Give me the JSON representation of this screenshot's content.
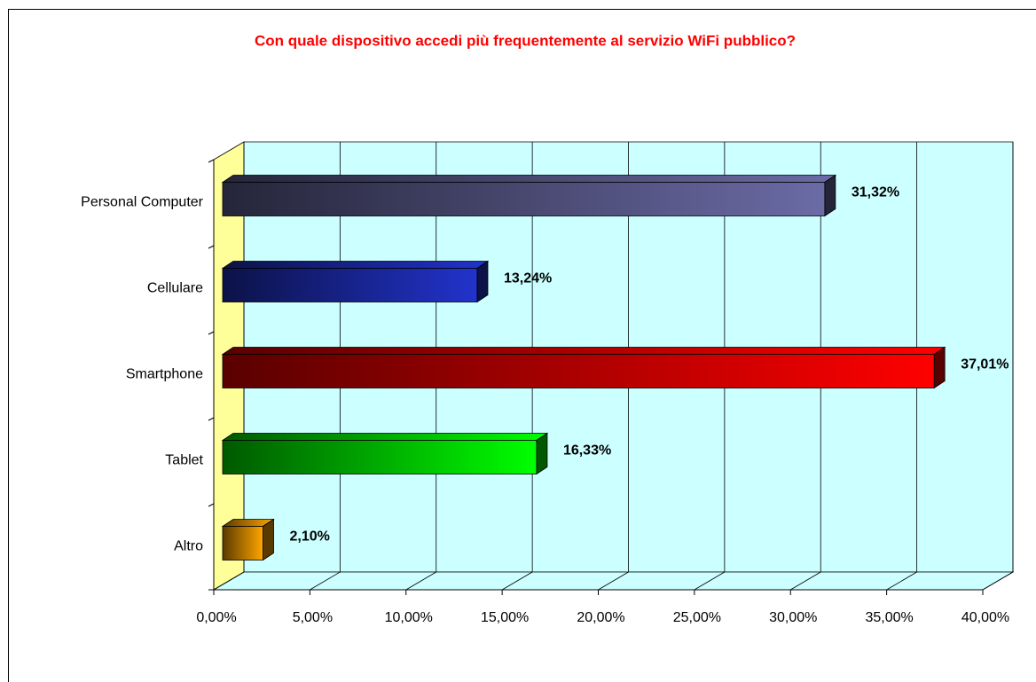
{
  "chart_data": {
    "type": "bar3d-horizontal",
    "title": "Con quale dispositivo accedi più frequentemente al servizio WiFi pubblico?",
    "categories": [
      "Personal Computer",
      "Cellulare",
      "Smartphone",
      "Tablet",
      "Altro"
    ],
    "values": [
      31.32,
      13.24,
      37.01,
      16.33,
      2.1
    ],
    "value_labels": [
      "31,32%",
      "13,24%",
      "37,01%",
      "16,33%",
      "2,10%"
    ],
    "colors": [
      "#6b6ba6",
      "#2233cc",
      "#ff0000",
      "#00ff00",
      "#ffa500"
    ],
    "xlim": [
      0,
      40
    ],
    "xticks": [
      {
        "value": 0,
        "label": "0,00%"
      },
      {
        "value": 5,
        "label": "5,00%"
      },
      {
        "value": 10,
        "label": "10,00%"
      },
      {
        "value": 15,
        "label": "15,00%"
      },
      {
        "value": 20,
        "label": "20,00%"
      },
      {
        "value": 25,
        "label": "25,00%"
      },
      {
        "value": 30,
        "label": "30,00%"
      },
      {
        "value": 35,
        "label": "35,00%"
      },
      {
        "value": 40,
        "label": "40,00%"
      }
    ],
    "grid": true
  }
}
